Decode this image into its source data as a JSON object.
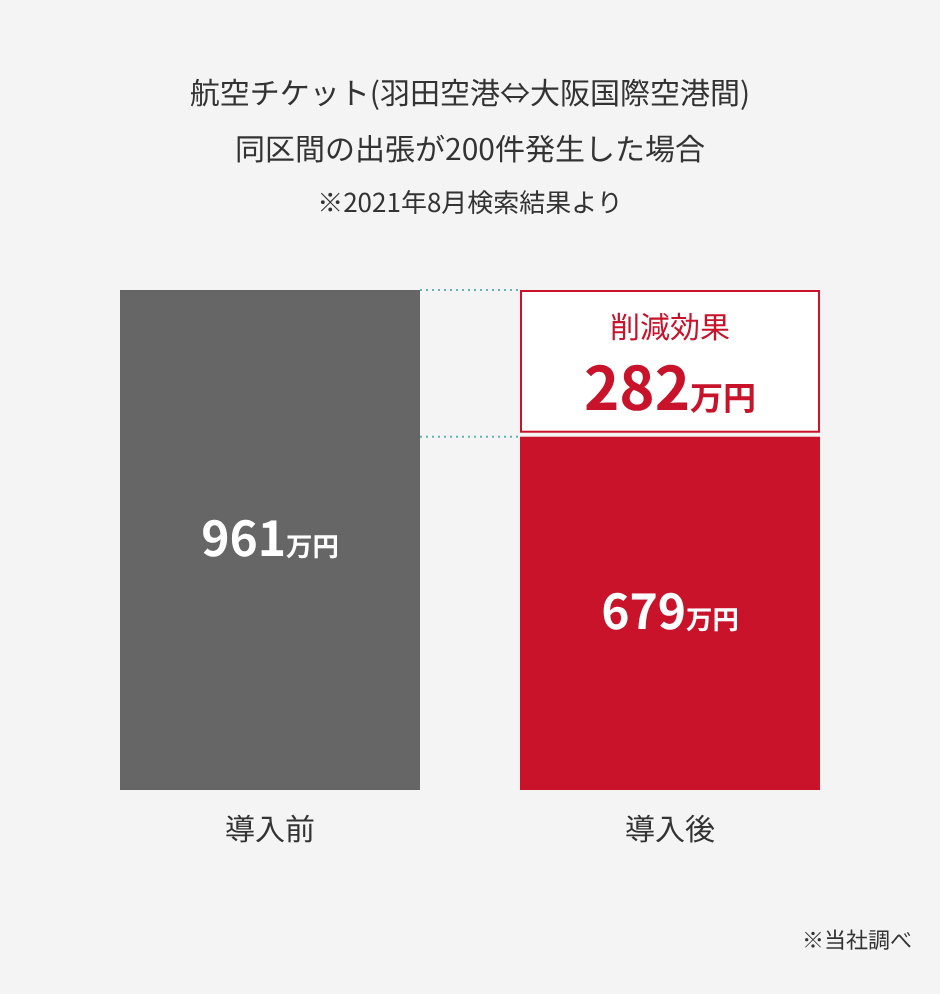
{
  "chart_data": {
    "type": "bar",
    "title": "航空チケット(羽田空港⇔大阪国際空港間)\n同区間の出張が200件発生した場合",
    "subtitle": "※2021年8月検索結果より",
    "categories": [
      "導入前",
      "導入後"
    ],
    "values": [
      961,
      679
    ],
    "colors": [
      "#666666",
      "#c8132a"
    ],
    "value_labels": [
      "961万円",
      "679万円"
    ],
    "ref_lines": [
      {
        "axis": "y",
        "value": 961,
        "line_style": "dotted",
        "color": "#5fb8b0"
      },
      {
        "axis": "y",
        "value": 679,
        "line_style": "dotted",
        "color": "#5fb8b0"
      }
    ],
    "annotations": [
      "削減効果\n282万円",
      "※当社調べ"
    ]
  }
}
